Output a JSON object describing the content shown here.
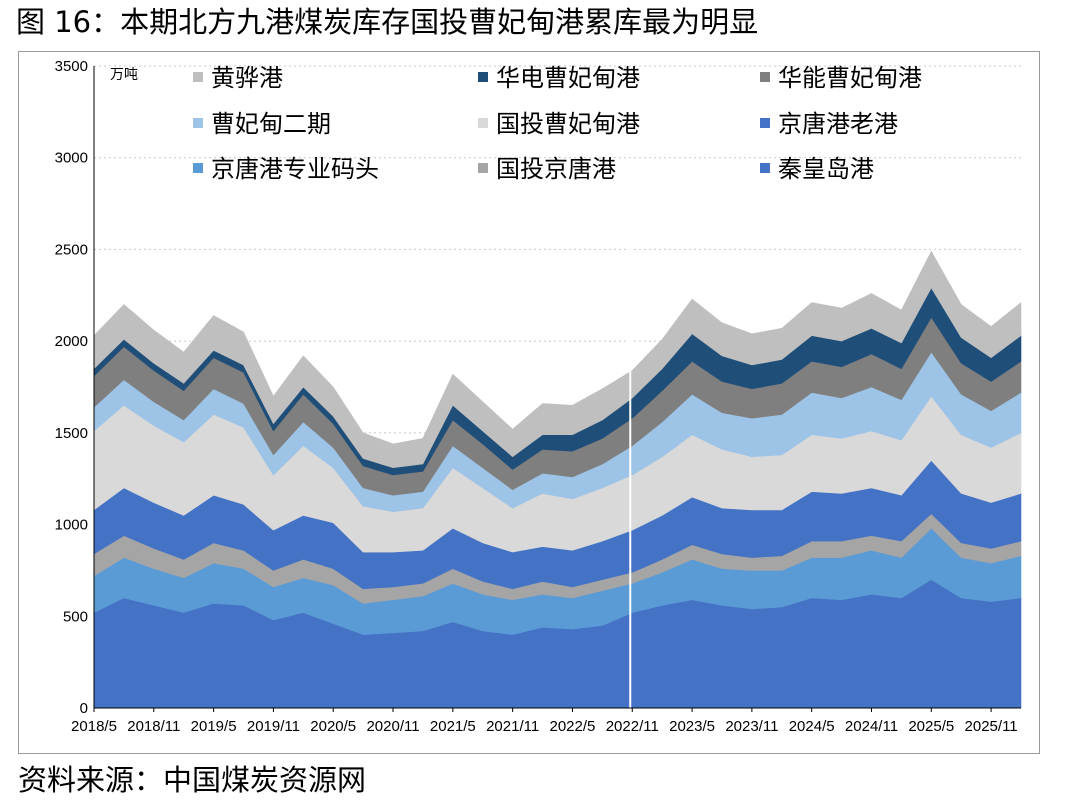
{
  "figure": {
    "title": "图 16：本期北方九港煤炭库存国投曹妃甸港累库最为明显",
    "source": "资料来源：中国煤炭资源网"
  },
  "chart_data": {
    "type": "area",
    "stacked": true,
    "unit_label": "万吨",
    "ylim": [
      0,
      3500
    ],
    "yticks": [
      "0",
      "500",
      "1000",
      "1500",
      "2000",
      "2500",
      "3000",
      "3500"
    ],
    "xticks": [
      "2018/5",
      "2018/11",
      "2019/5",
      "2019/11",
      "2020/5",
      "2020/11",
      "2021/5",
      "2021/11",
      "2022/5",
      "2022/11",
      "2023/5",
      "2023/11",
      "2024/5",
      "2024/11",
      "2025/5",
      "2025/11"
    ],
    "grid": true,
    "legend_position": "top",
    "x": [
      "2018/5",
      "2018/8",
      "2018/11",
      "2019/2",
      "2019/5",
      "2019/8",
      "2019/11",
      "2020/2",
      "2020/5",
      "2020/8",
      "2020/11",
      "2021/2",
      "2021/5",
      "2021/8",
      "2021/11",
      "2022/2",
      "2022/5",
      "2022/8",
      "2022/11",
      "2023/2",
      "2023/5",
      "2023/8",
      "2023/11",
      "2024/2",
      "2024/5",
      "2024/8",
      "2024/11",
      "2025/2",
      "2025/5",
      "2025/8",
      "2025/11",
      "2026/2"
    ],
    "series": [
      {
        "name": "秦皇岛港",
        "color": "#4472c4",
        "values": [
          520,
          600,
          560,
          520,
          570,
          560,
          480,
          520,
          460,
          400,
          410,
          420,
          470,
          420,
          400,
          440,
          430,
          450,
          520,
          560,
          590,
          560,
          540,
          550,
          600,
          590,
          620,
          600,
          700,
          600,
          580,
          600
        ]
      },
      {
        "name": "京唐港专业码头",
        "color": "#5b9bd5",
        "values": [
          200,
          220,
          200,
          190,
          220,
          200,
          180,
          190,
          210,
          170,
          180,
          190,
          210,
          200,
          190,
          180,
          170,
          190,
          160,
          180,
          220,
          200,
          210,
          200,
          220,
          230,
          240,
          220,
          280,
          220,
          210,
          230
        ]
      },
      {
        "name": "国投京唐港",
        "color": "#a5a5a5",
        "values": [
          120,
          120,
          110,
          100,
          110,
          100,
          90,
          100,
          90,
          80,
          70,
          70,
          80,
          70,
          60,
          70,
          60,
          60,
          60,
          70,
          80,
          80,
          70,
          80,
          90,
          90,
          80,
          90,
          80,
          80,
          80,
          80
        ]
      },
      {
        "name": "京唐港老港",
        "color": "#4472c4",
        "values": [
          240,
          260,
          250,
          240,
          260,
          250,
          220,
          240,
          250,
          200,
          190,
          180,
          220,
          210,
          200,
          190,
          200,
          210,
          230,
          240,
          260,
          250,
          260,
          250,
          270,
          260,
          260,
          250,
          290,
          270,
          250,
          260
        ]
      },
      {
        "name": "国投曹妃甸港",
        "color": "#d9d9d9",
        "values": [
          430,
          450,
          420,
          400,
          440,
          420,
          300,
          380,
          300,
          250,
          220,
          230,
          330,
          300,
          240,
          290,
          280,
          290,
          300,
          320,
          340,
          320,
          290,
          300,
          310,
          300,
          310,
          300,
          350,
          320,
          300,
          330
        ]
      },
      {
        "name": "曹妃甸二期",
        "color": "#9dc3e6",
        "values": [
          130,
          140,
          130,
          120,
          140,
          130,
          110,
          130,
          110,
          100,
          90,
          90,
          120,
          110,
          100,
          110,
          120,
          130,
          160,
          190,
          220,
          200,
          210,
          220,
          230,
          220,
          240,
          220,
          240,
          220,
          200,
          220
        ]
      },
      {
        "name": "华能曹妃甸港",
        "color": "#7f7f7f",
        "values": [
          170,
          180,
          170,
          160,
          170,
          170,
          130,
          150,
          130,
          120,
          110,
          110,
          140,
          130,
          110,
          130,
          140,
          140,
          150,
          170,
          180,
          170,
          160,
          170,
          170,
          170,
          180,
          170,
          190,
          170,
          160,
          170
        ]
      },
      {
        "name": "华电曹妃甸港",
        "color": "#1f4e79",
        "values": [
          40,
          40,
          40,
          40,
          40,
          40,
          40,
          40,
          40,
          40,
          40,
          40,
          80,
          70,
          70,
          80,
          90,
          100,
          110,
          120,
          150,
          140,
          130,
          130,
          140,
          140,
          140,
          140,
          160,
          140,
          130,
          140
        ]
      },
      {
        "name": "黄骅港",
        "color": "#bfbfbf",
        "values": [
          180,
          190,
          180,
          170,
          190,
          180,
          150,
          170,
          160,
          140,
          130,
          140,
          170,
          160,
          150,
          170,
          160,
          170,
          150,
          160,
          190,
          180,
          170,
          170,
          180,
          180,
          190,
          180,
          200,
          180,
          170,
          180
        ]
      }
    ]
  }
}
